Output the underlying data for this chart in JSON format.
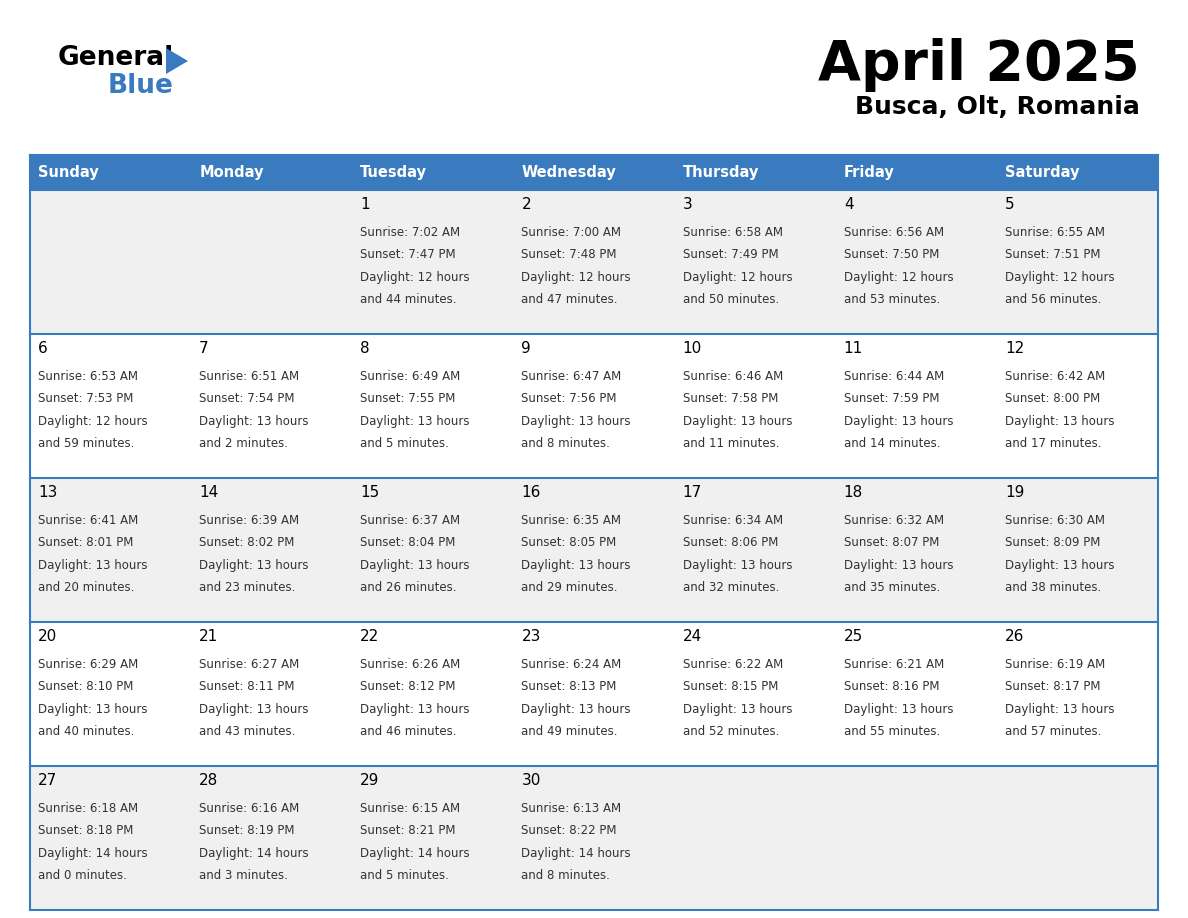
{
  "title": "April 2025",
  "subtitle": "Busca, Olt, Romania",
  "header_color": "#3a7abf",
  "header_text_color": "#ffffff",
  "row_colors": [
    "#f0f0f0",
    "#ffffff",
    "#f0f0f0",
    "#ffffff",
    "#f0f0f0"
  ],
  "border_color": "#3a7abf",
  "text_color": "#333333",
  "day_headers": [
    "Sunday",
    "Monday",
    "Tuesday",
    "Wednesday",
    "Thursday",
    "Friday",
    "Saturday"
  ],
  "days": [
    {
      "day": 1,
      "col": 2,
      "row": 0,
      "sunrise": "7:02 AM",
      "sunset": "7:47 PM",
      "daylight_h": "12 hours",
      "daylight_m": "44 minutes."
    },
    {
      "day": 2,
      "col": 3,
      "row": 0,
      "sunrise": "7:00 AM",
      "sunset": "7:48 PM",
      "daylight_h": "12 hours",
      "daylight_m": "47 minutes."
    },
    {
      "day": 3,
      "col": 4,
      "row": 0,
      "sunrise": "6:58 AM",
      "sunset": "7:49 PM",
      "daylight_h": "12 hours",
      "daylight_m": "50 minutes."
    },
    {
      "day": 4,
      "col": 5,
      "row": 0,
      "sunrise": "6:56 AM",
      "sunset": "7:50 PM",
      "daylight_h": "12 hours",
      "daylight_m": "53 minutes."
    },
    {
      "day": 5,
      "col": 6,
      "row": 0,
      "sunrise": "6:55 AM",
      "sunset": "7:51 PM",
      "daylight_h": "12 hours",
      "daylight_m": "56 minutes."
    },
    {
      "day": 6,
      "col": 0,
      "row": 1,
      "sunrise": "6:53 AM",
      "sunset": "7:53 PM",
      "daylight_h": "12 hours",
      "daylight_m": "59 minutes."
    },
    {
      "day": 7,
      "col": 1,
      "row": 1,
      "sunrise": "6:51 AM",
      "sunset": "7:54 PM",
      "daylight_h": "13 hours",
      "daylight_m": "2 minutes."
    },
    {
      "day": 8,
      "col": 2,
      "row": 1,
      "sunrise": "6:49 AM",
      "sunset": "7:55 PM",
      "daylight_h": "13 hours",
      "daylight_m": "5 minutes."
    },
    {
      "day": 9,
      "col": 3,
      "row": 1,
      "sunrise": "6:47 AM",
      "sunset": "7:56 PM",
      "daylight_h": "13 hours",
      "daylight_m": "8 minutes."
    },
    {
      "day": 10,
      "col": 4,
      "row": 1,
      "sunrise": "6:46 AM",
      "sunset": "7:58 PM",
      "daylight_h": "13 hours",
      "daylight_m": "11 minutes."
    },
    {
      "day": 11,
      "col": 5,
      "row": 1,
      "sunrise": "6:44 AM",
      "sunset": "7:59 PM",
      "daylight_h": "13 hours",
      "daylight_m": "14 minutes."
    },
    {
      "day": 12,
      "col": 6,
      "row": 1,
      "sunrise": "6:42 AM",
      "sunset": "8:00 PM",
      "daylight_h": "13 hours",
      "daylight_m": "17 minutes."
    },
    {
      "day": 13,
      "col": 0,
      "row": 2,
      "sunrise": "6:41 AM",
      "sunset": "8:01 PM",
      "daylight_h": "13 hours",
      "daylight_m": "20 minutes."
    },
    {
      "day": 14,
      "col": 1,
      "row": 2,
      "sunrise": "6:39 AM",
      "sunset": "8:02 PM",
      "daylight_h": "13 hours",
      "daylight_m": "23 minutes."
    },
    {
      "day": 15,
      "col": 2,
      "row": 2,
      "sunrise": "6:37 AM",
      "sunset": "8:04 PM",
      "daylight_h": "13 hours",
      "daylight_m": "26 minutes."
    },
    {
      "day": 16,
      "col": 3,
      "row": 2,
      "sunrise": "6:35 AM",
      "sunset": "8:05 PM",
      "daylight_h": "13 hours",
      "daylight_m": "29 minutes."
    },
    {
      "day": 17,
      "col": 4,
      "row": 2,
      "sunrise": "6:34 AM",
      "sunset": "8:06 PM",
      "daylight_h": "13 hours",
      "daylight_m": "32 minutes."
    },
    {
      "day": 18,
      "col": 5,
      "row": 2,
      "sunrise": "6:32 AM",
      "sunset": "8:07 PM",
      "daylight_h": "13 hours",
      "daylight_m": "35 minutes."
    },
    {
      "day": 19,
      "col": 6,
      "row": 2,
      "sunrise": "6:30 AM",
      "sunset": "8:09 PM",
      "daylight_h": "13 hours",
      "daylight_m": "38 minutes."
    },
    {
      "day": 20,
      "col": 0,
      "row": 3,
      "sunrise": "6:29 AM",
      "sunset": "8:10 PM",
      "daylight_h": "13 hours",
      "daylight_m": "40 minutes."
    },
    {
      "day": 21,
      "col": 1,
      "row": 3,
      "sunrise": "6:27 AM",
      "sunset": "8:11 PM",
      "daylight_h": "13 hours",
      "daylight_m": "43 minutes."
    },
    {
      "day": 22,
      "col": 2,
      "row": 3,
      "sunrise": "6:26 AM",
      "sunset": "8:12 PM",
      "daylight_h": "13 hours",
      "daylight_m": "46 minutes."
    },
    {
      "day": 23,
      "col": 3,
      "row": 3,
      "sunrise": "6:24 AM",
      "sunset": "8:13 PM",
      "daylight_h": "13 hours",
      "daylight_m": "49 minutes."
    },
    {
      "day": 24,
      "col": 4,
      "row": 3,
      "sunrise": "6:22 AM",
      "sunset": "8:15 PM",
      "daylight_h": "13 hours",
      "daylight_m": "52 minutes."
    },
    {
      "day": 25,
      "col": 5,
      "row": 3,
      "sunrise": "6:21 AM",
      "sunset": "8:16 PM",
      "daylight_h": "13 hours",
      "daylight_m": "55 minutes."
    },
    {
      "day": 26,
      "col": 6,
      "row": 3,
      "sunrise": "6:19 AM",
      "sunset": "8:17 PM",
      "daylight_h": "13 hours",
      "daylight_m": "57 minutes."
    },
    {
      "day": 27,
      "col": 0,
      "row": 4,
      "sunrise": "6:18 AM",
      "sunset": "8:18 PM",
      "daylight_h": "14 hours",
      "daylight_m": "0 minutes."
    },
    {
      "day": 28,
      "col": 1,
      "row": 4,
      "sunrise": "6:16 AM",
      "sunset": "8:19 PM",
      "daylight_h": "14 hours",
      "daylight_m": "3 minutes."
    },
    {
      "day": 29,
      "col": 2,
      "row": 4,
      "sunrise": "6:15 AM",
      "sunset": "8:21 PM",
      "daylight_h": "14 hours",
      "daylight_m": "5 minutes."
    },
    {
      "day": 30,
      "col": 3,
      "row": 4,
      "sunrise": "6:13 AM",
      "sunset": "8:22 PM",
      "daylight_h": "14 hours",
      "daylight_m": "8 minutes."
    }
  ]
}
